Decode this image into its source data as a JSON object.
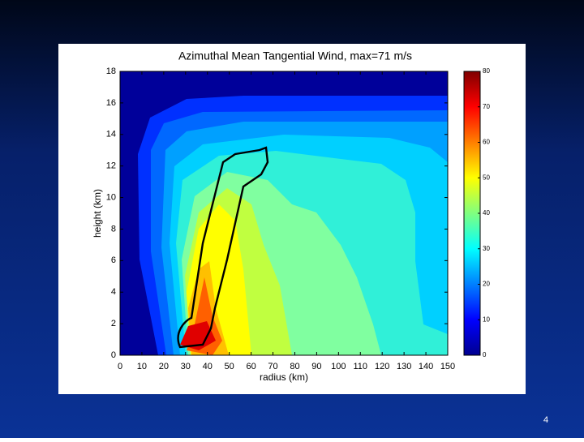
{
  "chart_data": {
    "type": "contour",
    "title": "Azimuthal Mean Tangential Wind, max=71 m/s",
    "x_label": "radius (km)",
    "y_label": "height (km)",
    "xlim": [
      0,
      150
    ],
    "xticks": [
      0,
      10,
      20,
      30,
      40,
      50,
      60,
      70,
      80,
      90,
      100,
      110,
      120,
      130,
      140,
      150
    ],
    "ylim": [
      0,
      18
    ],
    "yticks": [
      0,
      2,
      4,
      6,
      8,
      10,
      12,
      14,
      16,
      18
    ],
    "colorbar": {
      "lim": [
        0,
        80
      ],
      "ticks": [
        0,
        10,
        20,
        30,
        40,
        50,
        60,
        70,
        80
      ]
    }
  },
  "slide_number": "4"
}
